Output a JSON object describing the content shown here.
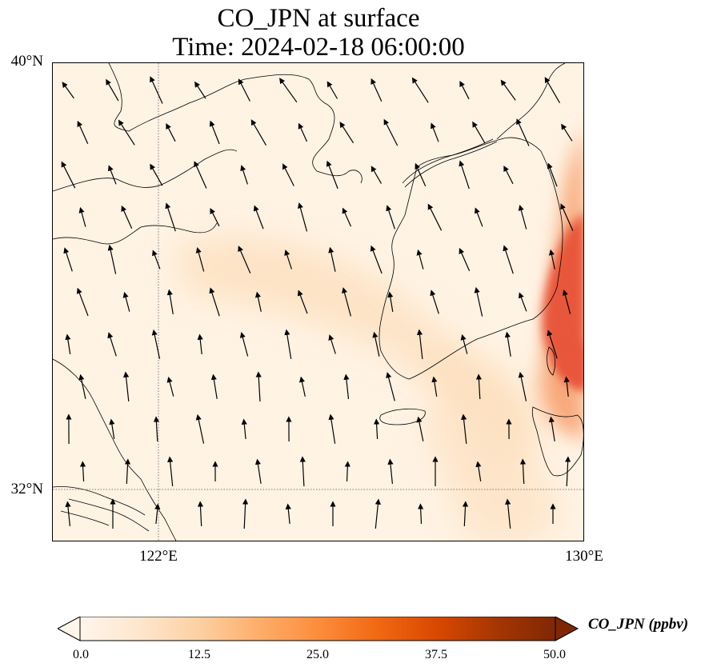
{
  "title": {
    "line1": "CO_JPN at surface",
    "line2": "Time: 2024-02-18 06:00:00"
  },
  "axes": {
    "lat_labels": [
      {
        "text": "40°N",
        "lat": 40
      },
      {
        "text": "32°N",
        "lat": 32
      }
    ],
    "lon_labels": [
      {
        "text": "122°E",
        "lon": 122
      },
      {
        "text": "130°E",
        "lon": 130
      }
    ],
    "extent": {
      "lon_min": 120,
      "lon_max": 130,
      "lat_min": 31,
      "lat_max": 40
    },
    "gridlines": "dotted at 122°E and 32°N"
  },
  "colorbar": {
    "label": "CO_JPN (ppbv)",
    "ticks": [
      "0.0",
      "12.5",
      "25.0",
      "37.5",
      "50.0"
    ],
    "range": [
      0,
      50
    ],
    "extend": "both",
    "colormap": [
      "#fff5eb",
      "#fee6ce",
      "#fdd0a2",
      "#fdae6b",
      "#fd8d3c",
      "#f16913",
      "#d94801",
      "#a63603",
      "#7f2704"
    ]
  },
  "field": {
    "background": "#fff3e4",
    "plumes": [
      {
        "name": "coastal-high",
        "color": "#e8573a",
        "value": 30
      },
      {
        "name": "coastal-mid",
        "color": "#f8a97a",
        "value": 20
      },
      {
        "name": "yellow-sea-band",
        "color": "#fde2c2",
        "value": 8
      },
      {
        "name": "korea-strait-band",
        "color": "#fde0bf",
        "value": 9
      }
    ]
  },
  "wind": {
    "description": "northwesterly-to-southerly flow vectors",
    "color": "#000000"
  }
}
